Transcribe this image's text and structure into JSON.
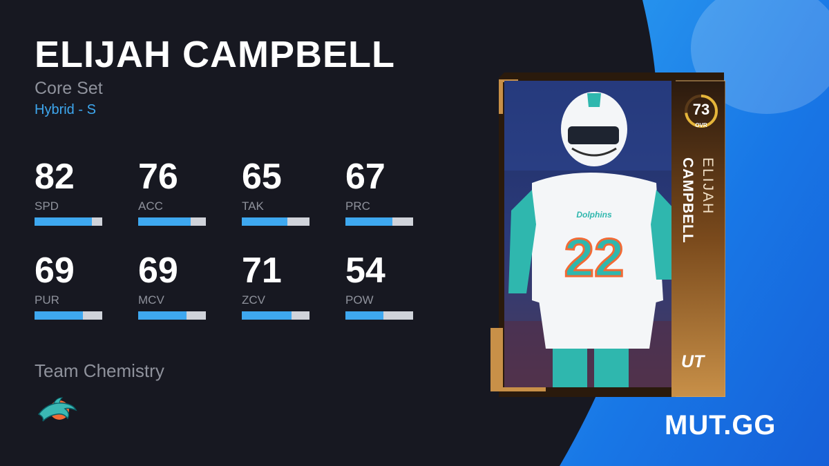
{
  "player": {
    "name": "ELIJAH CAMPBELL",
    "set": "Core Set",
    "archetype": "Hybrid - S"
  },
  "stats": [
    {
      "value": "82",
      "label": "SPD",
      "fill": 0.85
    },
    {
      "value": "76",
      "label": "ACC",
      "fill": 0.78
    },
    {
      "value": "65",
      "label": "TAK",
      "fill": 0.67
    },
    {
      "value": "67",
      "label": "PRC",
      "fill": 0.69
    },
    {
      "value": "69",
      "label": "PUR",
      "fill": 0.71
    },
    {
      "value": "69",
      "label": "MCV",
      "fill": 0.71
    },
    {
      "value": "71",
      "label": "ZCV",
      "fill": 0.73
    },
    {
      "value": "54",
      "label": "POW",
      "fill": 0.56
    }
  ],
  "team_chemistry": {
    "title": "Team Chemistry",
    "team_icon": "dolphins-logo-icon"
  },
  "card": {
    "ovr": "73",
    "ovr_label": "OVR",
    "ovr_fill": 0.73,
    "first_name": "ELIJAH",
    "last_name": "CAMPBELL",
    "program_badge": "UT",
    "jersey_number": "22",
    "jersey_text": "Dolphins"
  },
  "brand": {
    "logo_text": "MUT.GG"
  },
  "colors": {
    "background": "#171821",
    "accent_blue": "#3ea8f0",
    "muted_text": "#8f929c",
    "bar_track": "#d0d3da",
    "card_gold": "#8a5a2a",
    "ovr_ring": "#e5b53a",
    "dolphins_aqua": "#3bb8b4",
    "dolphins_orange": "#f26a35",
    "brand_panel_blue": "#1f8de8"
  }
}
